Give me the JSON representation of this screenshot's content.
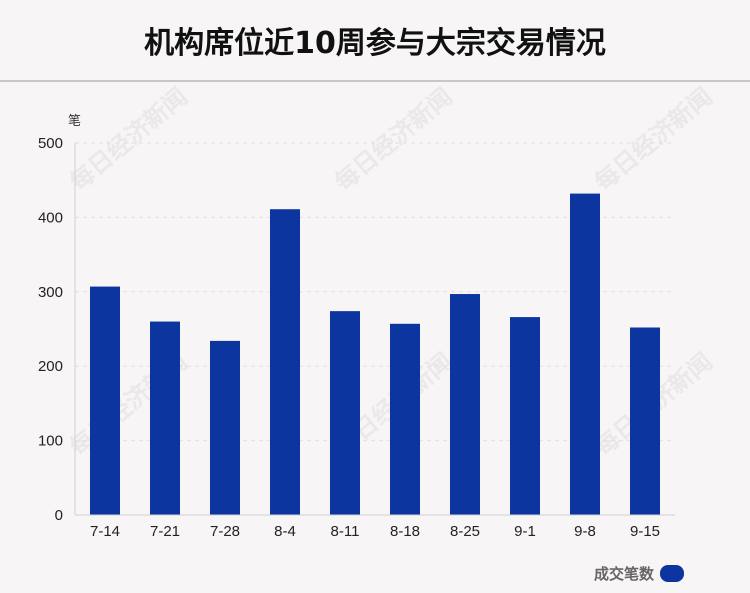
{
  "chart_data": {
    "type": "bar",
    "title": "机构席位近10周参与大宗交易情况",
    "ylabel": "笔",
    "categories": [
      "7-14",
      "7-21",
      "7-28",
      "8-4",
      "8-11",
      "8-18",
      "8-25",
      "9-1",
      "9-8",
      "9-15"
    ],
    "series": [
      {
        "name": "成交笔数",
        "values": [
          307,
          260,
          234,
          411,
          274,
          257,
          297,
          266,
          432,
          252
        ]
      }
    ],
    "ylim": [
      0,
      500
    ],
    "yticks": [
      0,
      100,
      200,
      300,
      400,
      500
    ],
    "grid": true,
    "legend_position": "bottom-right",
    "bar_color": "#0c35a0"
  },
  "watermark": "每日经济新闻"
}
